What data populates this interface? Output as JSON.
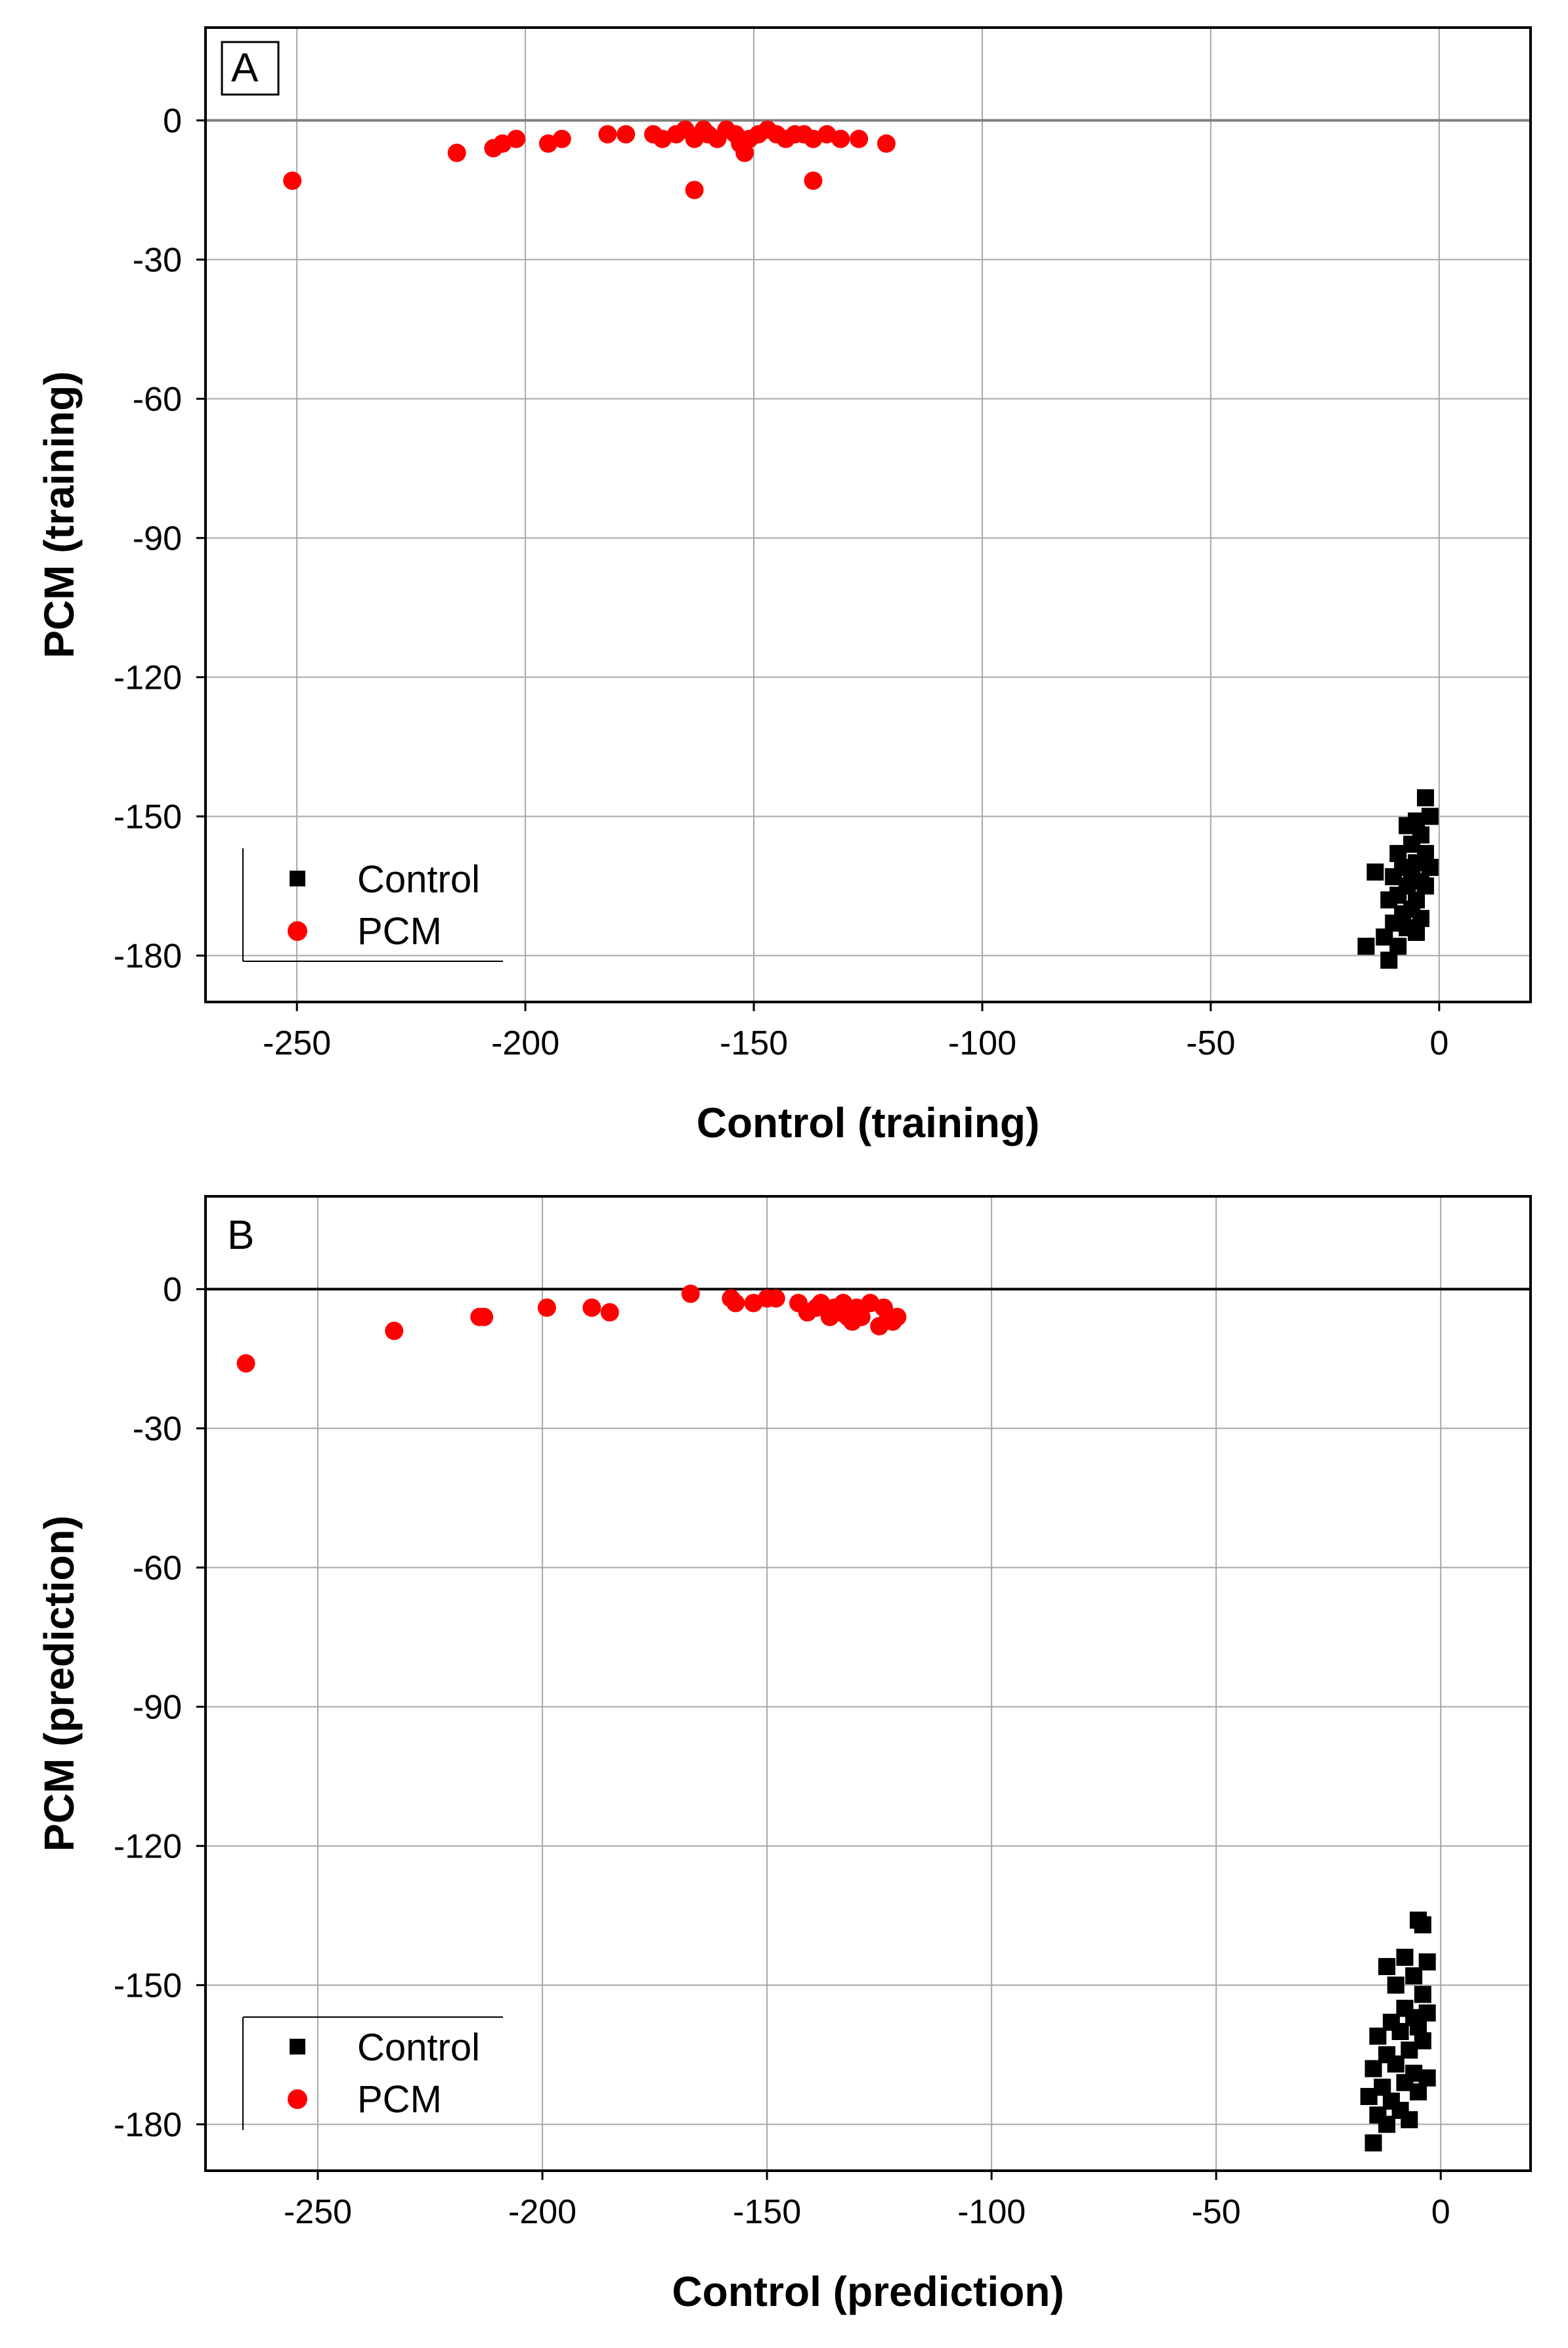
{
  "chart_data": [
    {
      "type": "scatter",
      "panel_label": "A",
      "title": "",
      "xlabel": "Control (training)",
      "ylabel": "PCM (training)",
      "xlim": [
        -270,
        20
      ],
      "ylim": [
        -190,
        20
      ],
      "xticks": [
        -250,
        -200,
        -150,
        -100,
        -50,
        0
      ],
      "yticks": [
        0,
        -30,
        -60,
        -90,
        -120,
        -150,
        -180
      ],
      "grid": true,
      "legend_position": "bottom-left",
      "legend": [
        "Control",
        "PCM"
      ],
      "series": [
        {
          "name": "Control",
          "marker": "square",
          "color": "#000000",
          "points": [
            [
              -3,
              -146
            ],
            [
              -5,
              -151
            ],
            [
              -2,
              -150
            ],
            [
              -7,
              -152
            ],
            [
              -4,
              -154
            ],
            [
              -6,
              -156
            ],
            [
              -9,
              -158
            ],
            [
              -3,
              -158
            ],
            [
              -5,
              -160
            ],
            [
              -8,
              -161
            ],
            [
              -2,
              -161
            ],
            [
              -6,
              -162
            ],
            [
              -10,
              -163
            ],
            [
              -4,
              -164
            ],
            [
              -14,
              -162
            ],
            [
              -7,
              -165
            ],
            [
              -3,
              -165
            ],
            [
              -9,
              -167
            ],
            [
              -5,
              -168
            ],
            [
              -11,
              -168
            ],
            [
              -6,
              -170
            ],
            [
              -8,
              -171
            ],
            [
              -4,
              -172
            ],
            [
              -10,
              -173
            ],
            [
              -7,
              -174
            ],
            [
              -5,
              -175
            ],
            [
              -12,
              -176
            ],
            [
              -16,
              -178
            ],
            [
              -9,
              -178
            ],
            [
              -11,
              -181
            ]
          ]
        },
        {
          "name": "PCM",
          "marker": "circle",
          "color": "#ff0000",
          "points": [
            [
              -251,
              -13
            ],
            [
              -215,
              -7
            ],
            [
              -207,
              -6
            ],
            [
              -205,
              -5
            ],
            [
              -202,
              -4
            ],
            [
              -195,
              -5
            ],
            [
              -192,
              -4
            ],
            [
              -182,
              -3
            ],
            [
              -178,
              -3
            ],
            [
              -172,
              -3
            ],
            [
              -170,
              -4
            ],
            [
              -167,
              -3
            ],
            [
              -165,
              -2
            ],
            [
              -163,
              -4
            ],
            [
              -161,
              -2
            ],
            [
              -160,
              -3
            ],
            [
              -158,
              -4
            ],
            [
              -156,
              -2
            ],
            [
              -154,
              -3
            ],
            [
              -153,
              -5
            ],
            [
              -151,
              -4
            ],
            [
              -149,
              -3
            ],
            [
              -147,
              -2
            ],
            [
              -145,
              -3
            ],
            [
              -143,
              -4
            ],
            [
              -141,
              -3
            ],
            [
              -139,
              -3
            ],
            [
              -137,
              -4
            ],
            [
              -134,
              -3
            ],
            [
              -131,
              -4
            ],
            [
              -127,
              -4
            ],
            [
              -121,
              -5
            ],
            [
              -163,
              -15
            ],
            [
              -137,
              -13
            ],
            [
              -152,
              -7
            ]
          ]
        }
      ]
    },
    {
      "type": "scatter",
      "panel_label": "B",
      "title": "",
      "xlabel": "Control (prediction)",
      "ylabel": "PCM (prediction)",
      "xlim": [
        -275,
        20
      ],
      "ylim": [
        -190,
        20
      ],
      "xticks": [
        -250,
        -200,
        -150,
        -100,
        -50,
        0
      ],
      "yticks": [
        0,
        -30,
        -60,
        -90,
        -120,
        -150,
        -180
      ],
      "grid": true,
      "legend_position": "bottom-left",
      "legend": [
        "Control",
        "PCM"
      ],
      "series": [
        {
          "name": "Control",
          "marker": "square",
          "color": "#000000",
          "points": [
            [
              -5,
              -136
            ],
            [
              -4,
              -137
            ],
            [
              -8,
              -144
            ],
            [
              -3,
              -145
            ],
            [
              -12,
              -146
            ],
            [
              -6,
              -148
            ],
            [
              -10,
              -150
            ],
            [
              -4,
              -152
            ],
            [
              -8,
              -155
            ],
            [
              -3,
              -156
            ],
            [
              -6,
              -157
            ],
            [
              -11,
              -158
            ],
            [
              -5,
              -159
            ],
            [
              -9,
              -160
            ],
            [
              -14,
              -161
            ],
            [
              -4,
              -162
            ],
            [
              -7,
              -164
            ],
            [
              -12,
              -165
            ],
            [
              -10,
              -167
            ],
            [
              -15,
              -168
            ],
            [
              -6,
              -169
            ],
            [
              -3,
              -170
            ],
            [
              -8,
              -171
            ],
            [
              -13,
              -172
            ],
            [
              -5,
              -173
            ],
            [
              -16,
              -174
            ],
            [
              -11,
              -175
            ],
            [
              -9,
              -177
            ],
            [
              -14,
              -178
            ],
            [
              -7,
              -179
            ],
            [
              -12,
              -180
            ],
            [
              -15,
              -184
            ]
          ]
        },
        {
          "name": "PCM",
          "marker": "circle",
          "color": "#ff0000",
          "points": [
            [
              -266,
              -16
            ],
            [
              -233,
              -9
            ],
            [
              -214,
              -6
            ],
            [
              -213,
              -6
            ],
            [
              -199,
              -4
            ],
            [
              -189,
              -4
            ],
            [
              -185,
              -5
            ],
            [
              -167,
              -1
            ],
            [
              -158,
              -2
            ],
            [
              -157,
              -3
            ],
            [
              -153,
              -3
            ],
            [
              -150,
              -2
            ],
            [
              -148,
              -2
            ],
            [
              -143,
              -3
            ],
            [
              -141,
              -5
            ],
            [
              -139,
              -4
            ],
            [
              -138,
              -3
            ],
            [
              -136,
              -6
            ],
            [
              -135,
              -4
            ],
            [
              -134,
              -5
            ],
            [
              -133,
              -3
            ],
            [
              -132,
              -6
            ],
            [
              -131,
              -7
            ],
            [
              -130,
              -4
            ],
            [
              -129,
              -6
            ],
            [
              -127,
              -3
            ],
            [
              -125,
              -8
            ],
            [
              -124,
              -4
            ],
            [
              -123,
              -6
            ],
            [
              -122,
              -7
            ],
            [
              -121,
              -6
            ]
          ]
        }
      ]
    }
  ]
}
